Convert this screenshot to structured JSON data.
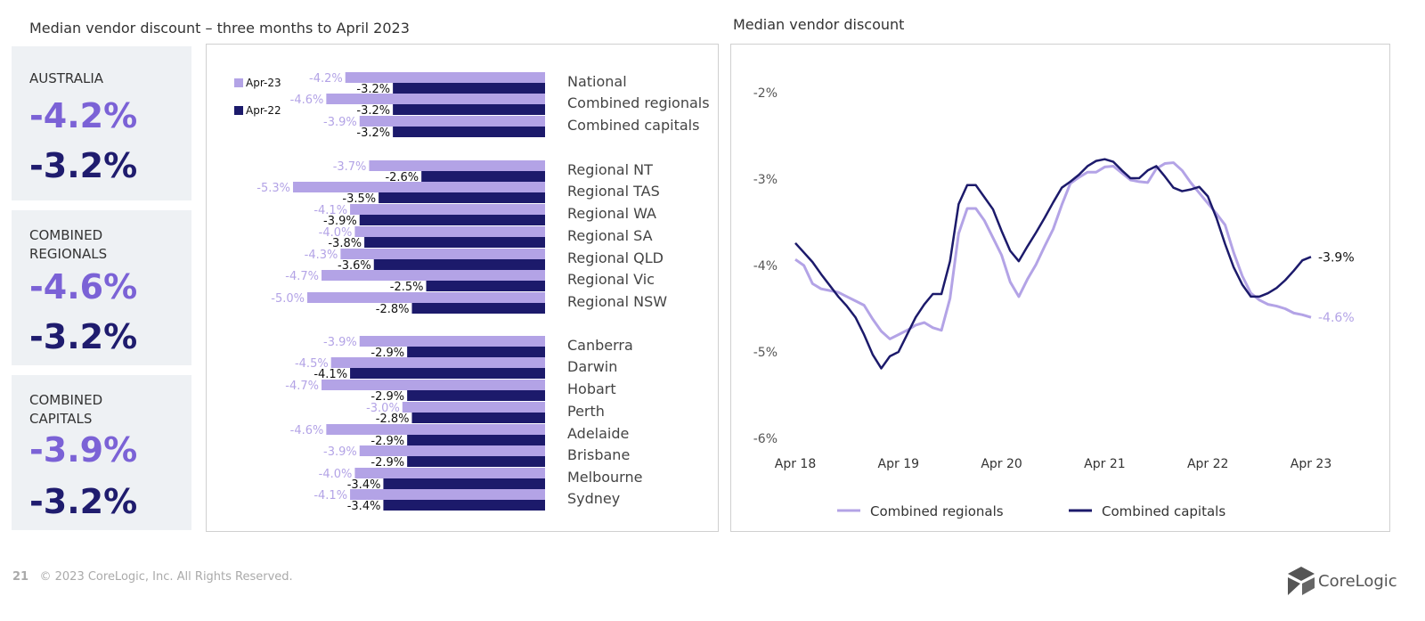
{
  "left_title": "Median vendor discount – three months to April 2023",
  "right_title": "Median vendor discount",
  "kpis": [
    {
      "label": "AUSTRALIA",
      "apr23": "-4.2%",
      "apr22": "-3.2%"
    },
    {
      "label": "COMBINED REGIONALS",
      "apr23": "-4.6%",
      "apr22": "-3.2%"
    },
    {
      "label": "COMBINED CAPITALS",
      "apr23": "-3.9%",
      "apr22": "-3.2%"
    }
  ],
  "footer": {
    "page": "21",
    "copyright": "© 2023 CoreLogic, Inc. All Rights Reserved.",
    "logo": "CoreLogic"
  },
  "colors": {
    "light": "#b3a3e6",
    "dark": "#1c1a6b"
  },
  "chart_data": [
    {
      "type": "bar",
      "orientation": "horizontal",
      "legend": [
        "Apr-23",
        "Apr-22"
      ],
      "legend_position": "top-left",
      "categories": [
        "National",
        "Combined regionals",
        "Combined capitals",
        "Regional NT",
        "Regional TAS",
        "Regional WA",
        "Regional SA",
        "Regional QLD",
        "Regional Vic",
        "Regional NSW",
        "Canberra",
        "Darwin",
        "Hobart",
        "Perth",
        "Adelaide",
        "Brisbane",
        "Melbourne",
        "Sydney"
      ],
      "series": [
        {
          "name": "Apr-23",
          "values": [
            -4.2,
            -4.6,
            -3.9,
            -3.7,
            -5.3,
            -4.1,
            -4.0,
            -4.3,
            -4.7,
            -5.0,
            -3.9,
            -4.5,
            -4.7,
            -3.0,
            -4.6,
            -3.9,
            -4.0,
            -4.1
          ]
        },
        {
          "name": "Apr-22",
          "values": [
            -3.2,
            -3.2,
            -3.2,
            -2.6,
            -3.5,
            -3.9,
            -3.8,
            -3.6,
            -2.5,
            -2.8,
            -2.9,
            -4.1,
            -2.9,
            -2.8,
            -2.9,
            -2.9,
            -3.4,
            -3.4
          ]
        }
      ]
    },
    {
      "type": "line",
      "title": "Median vendor discount",
      "x_start": "Apr 18",
      "x_end": "Apr 23",
      "x_frequency": "monthly",
      "xticks": [
        "Apr 18",
        "Apr 19",
        "Apr 20",
        "Apr 21",
        "Apr 22",
        "Apr 23"
      ],
      "yticks": [
        "-2%",
        "-3%",
        "-4%",
        "-5%",
        "-6%"
      ],
      "ylim": [
        -6,
        -2
      ],
      "legend_position": "bottom",
      "series": [
        {
          "name": "Combined regionals",
          "end_label": "-4.6%",
          "values": [
            -3.93,
            -4.0,
            -4.21,
            -4.27,
            -4.29,
            -4.31,
            -4.36,
            -4.41,
            -4.46,
            -4.62,
            -4.76,
            -4.85,
            -4.8,
            -4.75,
            -4.69,
            -4.66,
            -4.72,
            -4.75,
            -4.38,
            -3.63,
            -3.34,
            -3.34,
            -3.48,
            -3.68,
            -3.88,
            -4.19,
            -4.36,
            -4.16,
            -3.99,
            -3.78,
            -3.58,
            -3.3,
            -3.05,
            -2.98,
            -2.92,
            -2.92,
            -2.86,
            -2.85,
            -2.93,
            -3.01,
            -3.03,
            -3.04,
            -2.88,
            -2.82,
            -2.81,
            -2.9,
            -3.04,
            -3.16,
            -3.28,
            -3.4,
            -3.53,
            -3.85,
            -4.12,
            -4.32,
            -4.4,
            -4.45,
            -4.47,
            -4.5,
            -4.55,
            -4.57,
            -4.6
          ]
        },
        {
          "name": "Combined capitals",
          "end_label": "-3.9%",
          "values": [
            -3.74,
            -3.85,
            -3.96,
            -4.1,
            -4.23,
            -4.36,
            -4.47,
            -4.6,
            -4.8,
            -5.03,
            -5.19,
            -5.05,
            -5.0,
            -4.8,
            -4.6,
            -4.45,
            -4.33,
            -4.33,
            -3.95,
            -3.29,
            -3.07,
            -3.07,
            -3.21,
            -3.35,
            -3.6,
            -3.83,
            -3.95,
            -3.78,
            -3.62,
            -3.45,
            -3.27,
            -3.1,
            -3.03,
            -2.95,
            -2.85,
            -2.79,
            -2.77,
            -2.8,
            -2.9,
            -2.99,
            -2.99,
            -2.9,
            -2.85,
            -2.97,
            -3.1,
            -3.14,
            -3.12,
            -3.09,
            -3.2,
            -3.45,
            -3.75,
            -4.02,
            -4.22,
            -4.36,
            -4.36,
            -4.32,
            -4.26,
            -4.17,
            -4.06,
            -3.94,
            -3.9
          ]
        }
      ]
    }
  ]
}
